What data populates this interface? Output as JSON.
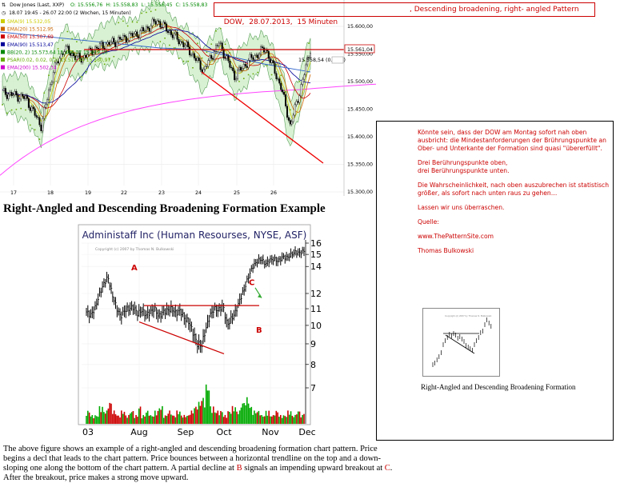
{
  "top_chart": {
    "header": {
      "symbol_line": "Dow Jones (Last, XXP)",
      "ohlc": [
        {
          "label": "O: 15.556,76",
          "color": "#008800"
        },
        {
          "label": "H: 15.558,83",
          "color": "#008800"
        },
        {
          "label": "L: 15.556,45",
          "color": "#008800"
        },
        {
          "label": "C: 15.558,83",
          "color": "#008800"
        }
      ],
      "range_line": "18.07 19:45 - 26.07 22:00 (2 Wochen, 15 Minuten)"
    },
    "indicators": [
      {
        "label": "SMA(9)  15.532,05",
        "color": "#cccc00"
      },
      {
        "label": "EMA(20)  15.512,95",
        "color": "#cc6600"
      },
      {
        "label": "EMA(50)  15.507,69",
        "color": "#cc0000"
      },
      {
        "label": "EMA(90)  15.513,47",
        "color": "#000099"
      },
      {
        "label": "BB(20, 2)  15.573,64  15.496,07  15.419,10",
        "color": "#008800"
      },
      {
        "label": "PSAR(0.02, 0.02, 0.2)  15.511,84  15.560,97",
        "color": "#66aa00"
      },
      {
        "label": "EMA(200)  15.502,34",
        "color": "#cc00cc"
      }
    ],
    "y_ticks": [
      "15.600,00",
      "15.550,00",
      "15.500,00",
      "15.450,00",
      "15.400,00",
      "15.350,00",
      "15.300,00"
    ],
    "x_ticks": [
      "17",
      "18",
      "19",
      "22",
      "23",
      "24",
      "25",
      "26"
    ],
    "price_tag": "15.561,04",
    "change_label": "15.558,54 (0.00%)"
  },
  "title_box": {
    "left": "DOW,  28.07.2013,  15 Minuten",
    "right": ", Descending broadening, right- angled Pattern"
  },
  "heading": "Right-Angled and Descending Broadening Formation Example",
  "chart_data": {
    "type": "bar",
    "title": "Administaff Inc (Human Resourses, NYSE, ASF)",
    "watermark": "Copyright (c) 2007 by Thomas N. Bulkowski",
    "categories": [
      "03",
      "Aug",
      "Sep",
      "Oct",
      "Nov",
      "Dec"
    ],
    "y_ticks": [
      7,
      8,
      9,
      10,
      11,
      12,
      14,
      15,
      16
    ],
    "y_range": [
      7,
      16
    ],
    "x_label": "",
    "y_label": "",
    "points": [
      {
        "label": "A",
        "value": 13.3,
        "category": "Aug"
      },
      {
        "label": "B",
        "value": 9.8,
        "category": "Oct"
      },
      {
        "label": "C",
        "value": 11.5,
        "category": "Oct"
      }
    ],
    "trendline_top": 11.2,
    "close_path": [
      10.8,
      10.6,
      11.0,
      11.9,
      12.6,
      13.2,
      12.0,
      11.1,
      10.5,
      10.9,
      11.0,
      11.1,
      10.7,
      10.9,
      10.6,
      10.8,
      11.0,
      10.5,
      10.8,
      10.9,
      11.0,
      10.7,
      10.9,
      10.4,
      10.2,
      9.6,
      9.0,
      8.9,
      9.8,
      10.6,
      11.0,
      10.9,
      11.2,
      10.0,
      10.4,
      10.8,
      11.6,
      12.3,
      13.2,
      14.0,
      14.4,
      14.6,
      14.2,
      14.5,
      14.6,
      14.4,
      14.8,
      14.7,
      15.0,
      15.2,
      15.1,
      15.3
    ],
    "volume": [
      3,
      2,
      2,
      4,
      3,
      5,
      3,
      2,
      3,
      2,
      3,
      2,
      4,
      2,
      3,
      2,
      3,
      4,
      2,
      3,
      2,
      3,
      2,
      2,
      3,
      4,
      5,
      6,
      9,
      4,
      3,
      3,
      2,
      3,
      4,
      3,
      5,
      6,
      4,
      3,
      3,
      2,
      3,
      2,
      3,
      2,
      2,
      3,
      2,
      3,
      2,
      3
    ]
  },
  "description": {
    "part1": "The above figure shows an example of a right-angled and descending broadening formation chart pattern. Price begins a decl that leads to the chart pattern. Price bounces between a horizontal trendline on the top and a down-sloping one along the bottom of the chart pattern. A partial decline at ",
    "b": "B",
    "part2": " signals an impending upward breakout at ",
    "c": "C",
    "part3": ". After the breakout, price makes a strong move upward."
  },
  "note": {
    "p1": "Könnte sein, dass der DOW am Montag sofort nah oben ausbricht: die Mindestanforderungen der Brührungspunkte an Ober- und Unterkante der Formation sind quasi \"übererfüllt\".",
    "p2a": "Drei Berührungspunkte oben,",
    "p2b": "drei Berührungspunkte unten.",
    "p3": "Die Wahrscheinlichkeit, nach oben auszubrechen ist statistisch größer, als sofort nach unten raus zu gehen…",
    "p4": "Lassen wir uns überraschen.",
    "p5": "Quelle:",
    "p6": "www.ThePatternSite.com",
    "p7": "Thomas Bulkowski",
    "thumb_caption": "Right-Angled and Descending Broadening Formation",
    "thumb_watermark": "Copyright (c) 2007 by Thomas N. Bulkowski"
  }
}
